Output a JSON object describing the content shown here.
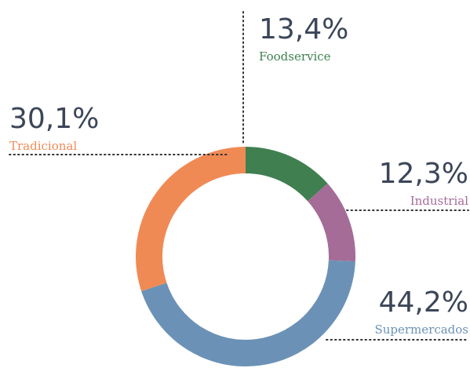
{
  "chart_data": {
    "type": "donut",
    "categories": [
      "Foodservice",
      "Industrial",
      "Supermercados",
      "Tradicional"
    ],
    "values": [
      13.4,
      12.3,
      44.2,
      30.1
    ],
    "value_labels": [
      "13,4%",
      "12,3%",
      "44,2%",
      "30,1%"
    ],
    "colors": [
      "#3f7f50",
      "#a56c97",
      "#6b92b6",
      "#f08a55"
    ]
  }
}
